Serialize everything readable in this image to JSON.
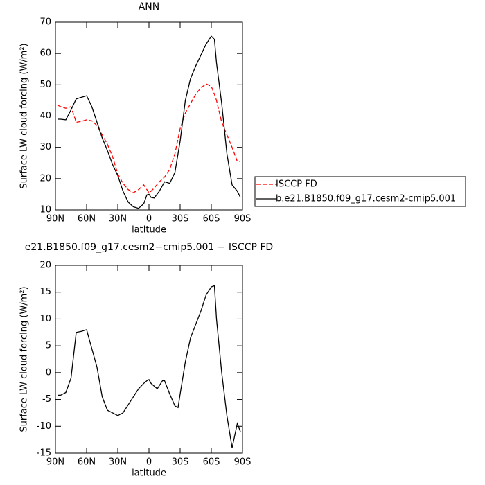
{
  "chart_data": [
    {
      "type": "line",
      "title": "ANN",
      "xlabel": "latitude",
      "ylabel": "Surface LW cloud forcing (W/m²)",
      "xlim": [
        90,
        -90
      ],
      "xticks": [
        {
          "value": 90,
          "label": "90N"
        },
        {
          "value": 60,
          "label": "60N"
        },
        {
          "value": 30,
          "label": "30N"
        },
        0,
        {
          "value": -30,
          "label": "30S"
        },
        {
          "value": -60,
          "label": "60S"
        },
        {
          "value": -90,
          "label": "90S"
        }
      ],
      "ylim": [
        10,
        70
      ],
      "yticks": [
        10,
        20,
        30,
        40,
        50,
        60,
        70
      ],
      "legend": "right",
      "x": [
        88,
        85,
        80,
        75,
        70,
        65,
        60,
        55,
        50,
        45,
        40,
        35,
        30,
        25,
        20,
        15,
        10,
        5,
        2,
        0,
        -2,
        -5,
        -10,
        -15,
        -20,
        -25,
        -30,
        -35,
        -40,
        -45,
        -50,
        -55,
        -60,
        -63,
        -65,
        -70,
        -75,
        -80,
        -85,
        -88
      ],
      "series": [
        {
          "name": "ISCCP FD",
          "color": "#ff0000",
          "dash": true,
          "values": [
            43.5,
            43,
            42.5,
            43,
            38,
            38.3,
            38.8,
            38.5,
            37,
            34,
            31,
            27,
            21.5,
            18.5,
            16.5,
            15.5,
            16.5,
            18,
            16.5,
            15.5,
            16,
            17,
            19,
            20.5,
            23,
            28,
            36,
            41,
            44,
            47,
            49,
            50.3,
            49.5,
            47,
            45,
            38,
            34,
            30,
            25.5,
            25.5
          ]
        },
        {
          "name": "b.e21.B1850.f09_g17.cesm2-cmip5.001",
          "color": "#000000",
          "dash": false,
          "values": [
            39,
            39,
            38.8,
            42,
            45.5,
            46,
            46.5,
            43,
            38,
            33,
            29,
            24.5,
            21,
            16,
            12.5,
            11,
            10.5,
            12,
            14.8,
            15,
            14,
            13.8,
            16,
            19,
            18.5,
            22,
            32,
            45,
            52,
            56,
            59.5,
            63,
            65.5,
            64.5,
            57,
            44,
            28,
            18,
            16,
            14
          ]
        }
      ]
    },
    {
      "type": "line",
      "title": "e21.B1850.f09_g17.cesm2−cmip5.001 − ISCCP FD",
      "xlabel": "latitude",
      "ylabel": "Surface LW cloud forcing (W/m²)",
      "xlim": [
        90,
        -90
      ],
      "xticks": [
        {
          "value": 90,
          "label": "90N"
        },
        {
          "value": 60,
          "label": "60N"
        },
        {
          "value": 30,
          "label": "30N"
        },
        0,
        {
          "value": -30,
          "label": "30S"
        },
        {
          "value": -60,
          "label": "60S"
        },
        {
          "value": -90,
          "label": "90S"
        }
      ],
      "ylim": [
        -15,
        20
      ],
      "yticks": [
        -15,
        -10,
        -5,
        0,
        5,
        10,
        15,
        20
      ],
      "x": [
        88,
        85,
        80,
        75,
        70,
        65,
        60,
        55,
        50,
        45,
        40,
        35,
        30,
        25,
        20,
        15,
        10,
        5,
        2,
        0,
        -2,
        -5,
        -8,
        -13,
        -15,
        -20,
        -25,
        -28,
        -30,
        -35,
        -40,
        -45,
        -50,
        -55,
        -60,
        -63,
        -65,
        -70,
        -75,
        -80,
        -85,
        -88
      ],
      "series": [
        {
          "color": "#000000",
          "dash": false,
          "values": [
            -4.2,
            -4.2,
            -3.7,
            -1,
            7.5,
            7.7,
            8,
            4.5,
            1,
            -4.5,
            -7,
            -7.5,
            -8,
            -7.5,
            -6,
            -4.5,
            -3,
            -2,
            -1.5,
            -1.3,
            -2,
            -2.5,
            -3,
            -1.5,
            -1.5,
            -4,
            -6.2,
            -6.5,
            -4,
            2,
            6.5,
            9,
            11.5,
            14.5,
            16,
            16.2,
            10,
            0,
            -8,
            -14,
            -9.5,
            -11
          ]
        }
      ]
    }
  ]
}
